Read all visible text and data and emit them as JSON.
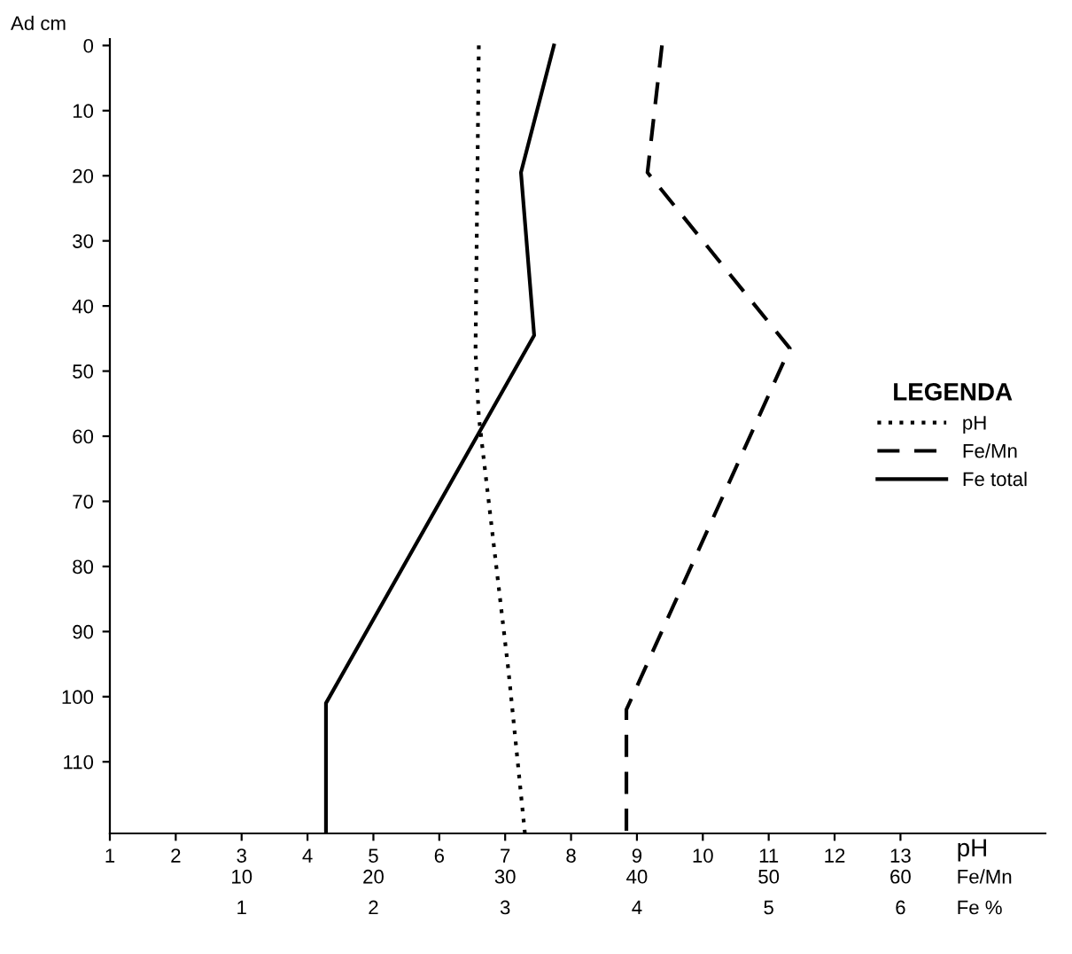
{
  "chart_data": [
    {
      "type": "line",
      "ylabel": "Ad cm",
      "xlabel": "pH",
      "x2label": "Fe/Mn",
      "legend_title": "LEGENDA",
      "legend": "right",
      "grid": false,
      "marker": "none",
      "xlim": [
        1,
        15.2
      ],
      "xticks": [
        1,
        2,
        3,
        4,
        5,
        6,
        7,
        8,
        9,
        10,
        11,
        12,
        13
      ],
      "x2lim": [
        0,
        71
      ],
      "x2ticks": [
        10,
        20,
        30,
        40,
        50,
        60
      ],
      "ylim": [
        121,
        -1
      ],
      "yticks": [
        0,
        10,
        20,
        30,
        40,
        50,
        60,
        70,
        80,
        90,
        100,
        110
      ],
      "series": [
        {
          "name": "pH",
          "line_style": "dotted",
          "color": "#000000",
          "x": [
            6.6,
            6.55,
            6.6,
            7.05,
            7.3
          ],
          "values": [
            0,
            47,
            57,
            96,
            121
          ]
        },
        {
          "name": "Fe/Mn",
          "axis": "x2",
          "line_style": "dashed",
          "color": "#000000",
          "x": [
            41.9,
            40.8,
            51.6,
            39.2,
            39.2
          ],
          "values": [
            0,
            19.5,
            46.5,
            102,
            121
          ]
        }
      ]
    },
    {
      "type": "line",
      "xlabel": "Fe %",
      "tick_labels": "x",
      "grid": false,
      "marker": "none",
      "xlim": [
        0,
        7.1
      ],
      "xticks": [
        1,
        2,
        3,
        4,
        5,
        6
      ],
      "ylim": [
        121,
        -1
      ],
      "series": [
        {
          "name": "Fe total",
          "line_style": "solid",
          "color": "#000000",
          "x": [
            3.37,
            3.12,
            3.22,
            1.64,
            1.64
          ],
          "values": [
            0,
            19.5,
            44.5,
            101,
            121
          ]
        }
      ]
    }
  ]
}
